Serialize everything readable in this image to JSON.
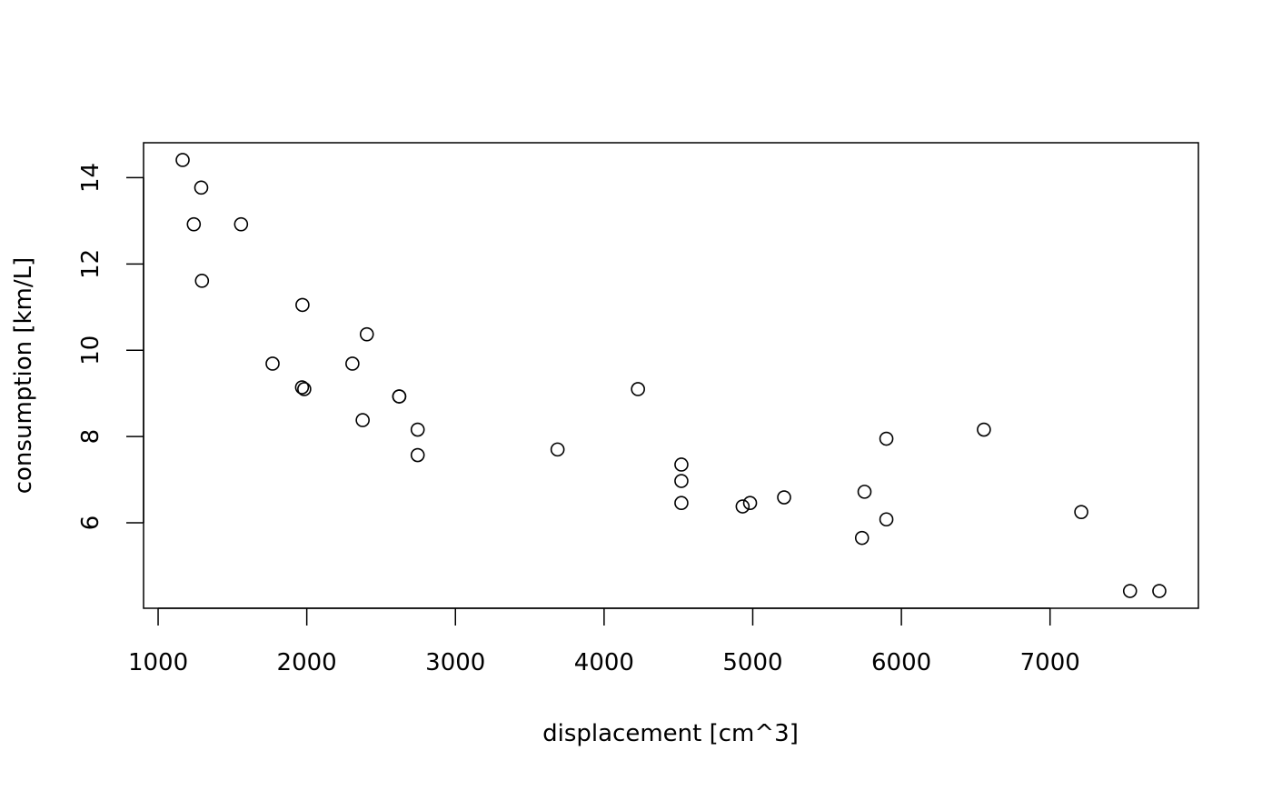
{
  "chart_data": {
    "type": "scatter",
    "xlabel": "displacement [cm^3]",
    "ylabel": "consumption [km/L]",
    "x": [
      2622,
      2622,
      1770,
      4228,
      5899,
      3687,
      5899,
      2404,
      2307,
      2746,
      2746,
      4520,
      4520,
      4520,
      7735,
      7538,
      7210,
      1290,
      1240,
      1165,
      1968,
      5211,
      4982,
      5735,
      6555,
      1295,
      1971,
      1558,
      5752,
      2376,
      4932,
      1983
    ],
    "y": [
      8.93,
      8.93,
      9.69,
      9.1,
      7.95,
      7.7,
      6.08,
      10.37,
      9.69,
      8.16,
      7.57,
      6.97,
      7.35,
      6.46,
      4.42,
      4.42,
      6.25,
      13.77,
      12.92,
      14.41,
      9.14,
      6.59,
      6.46,
      5.65,
      8.16,
      11.61,
      11.05,
      12.92,
      6.72,
      8.38,
      6.38,
      9.1
    ],
    "color": "#000000",
    "xlim": [
      902,
      7998
    ],
    "ylim": [
      4.02,
      14.81
    ],
    "xticks": [
      1000,
      2000,
      3000,
      4000,
      5000,
      6000,
      7000
    ],
    "yticks": [
      6,
      8,
      10,
      12,
      14
    ]
  }
}
